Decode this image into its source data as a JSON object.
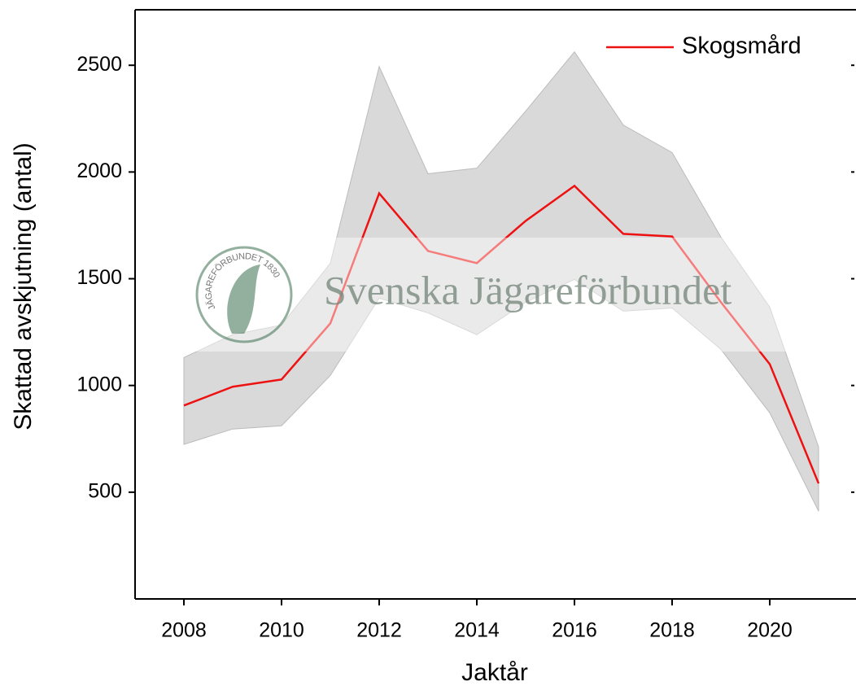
{
  "chart_data": {
    "type": "line",
    "x_label": "Jaktår",
    "y_label": "Skattad avskjutning (antal)",
    "x": [
      2008,
      2009,
      2010,
      2011,
      2012,
      2013,
      2014,
      2015,
      2016,
      2017,
      2018,
      2019,
      2020,
      2021
    ],
    "series": [
      {
        "name": "Skogsmård",
        "color": "#ee1111",
        "values": [
          906,
          994,
          1028,
          1291,
          1900,
          1630,
          1573,
          1771,
          1935,
          1710,
          1698,
          1390,
          1100,
          541
        ]
      }
    ],
    "band": {
      "color": "#d9d9d9",
      "upper": [
        1131,
        1238,
        1283,
        1573,
        2494,
        1992,
        2018,
        2285,
        2563,
        2220,
        2091,
        1695,
        1367,
        712
      ],
      "lower": [
        724,
        796,
        811,
        1047,
        1409,
        1340,
        1238,
        1390,
        1497,
        1348,
        1363,
        1169,
        872,
        411
      ]
    },
    "xlim": [
      2007,
      2021.75
    ],
    "ylim": [
      0,
      2760
    ],
    "xticks": [
      2008,
      2010,
      2012,
      2014,
      2016,
      2018,
      2020
    ],
    "yticks": [
      500,
      1000,
      1500,
      2000,
      2500
    ],
    "legend": "upper right",
    "watermark": "Svenska Jägareförbundet",
    "logo_text": "JÄGAREFÖRBUNDET 1830"
  }
}
